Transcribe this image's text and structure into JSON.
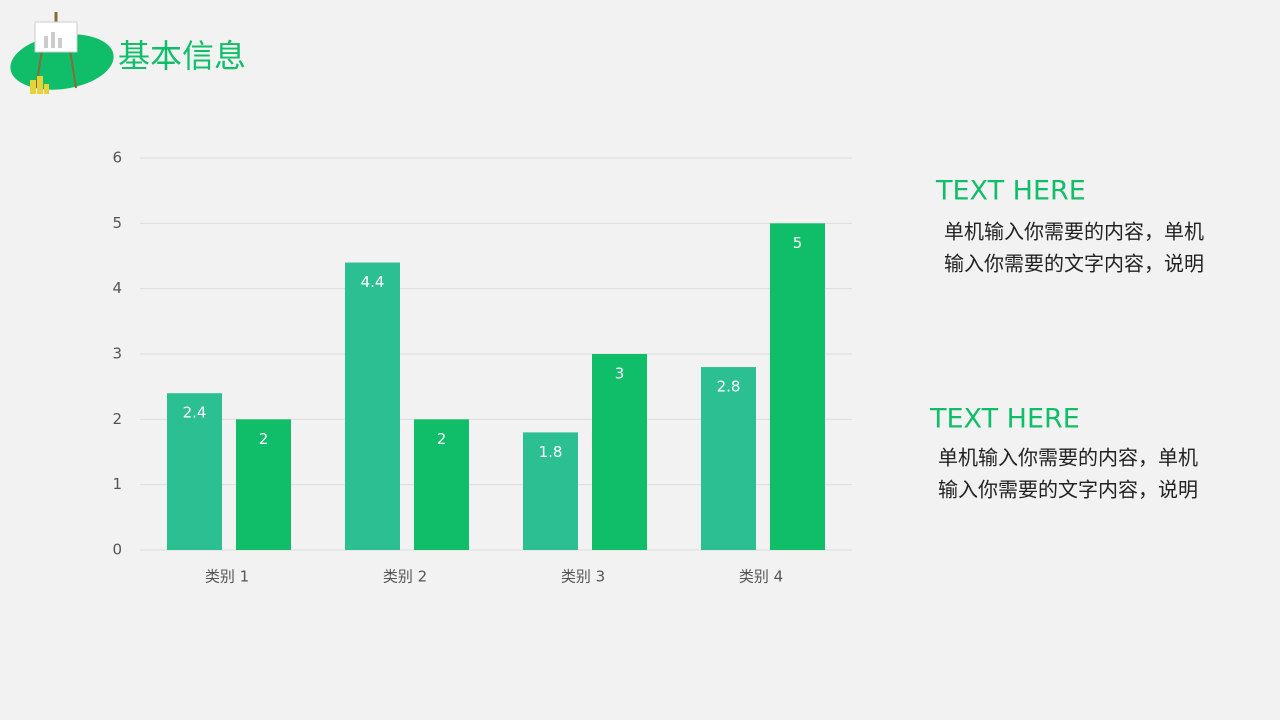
{
  "header": {
    "title": "基本信息"
  },
  "chart_data": {
    "type": "bar",
    "categories": [
      "类别 1",
      "类别 2",
      "类别 3",
      "类别 4"
    ],
    "series": [
      {
        "color": "#2cbf91",
        "values": [
          2.4,
          4.4,
          1.8,
          2.8
        ]
      },
      {
        "color": "#10be6a",
        "values": [
          2,
          2,
          3,
          5
        ]
      }
    ],
    "ylim": [
      0,
      6
    ],
    "yticks": [
      0,
      1,
      2,
      3,
      4,
      5,
      6
    ],
    "grid": true
  },
  "notes": [
    {
      "title": "TEXT HERE",
      "lines": [
        "单机输入你需要的内容，单机",
        "输入你需要的文字内容，说明"
      ]
    },
    {
      "title": "TEXT HERE",
      "lines": [
        "单机输入你需要的内容，单机",
        "输入你需要的文字内容，说明"
      ]
    }
  ]
}
